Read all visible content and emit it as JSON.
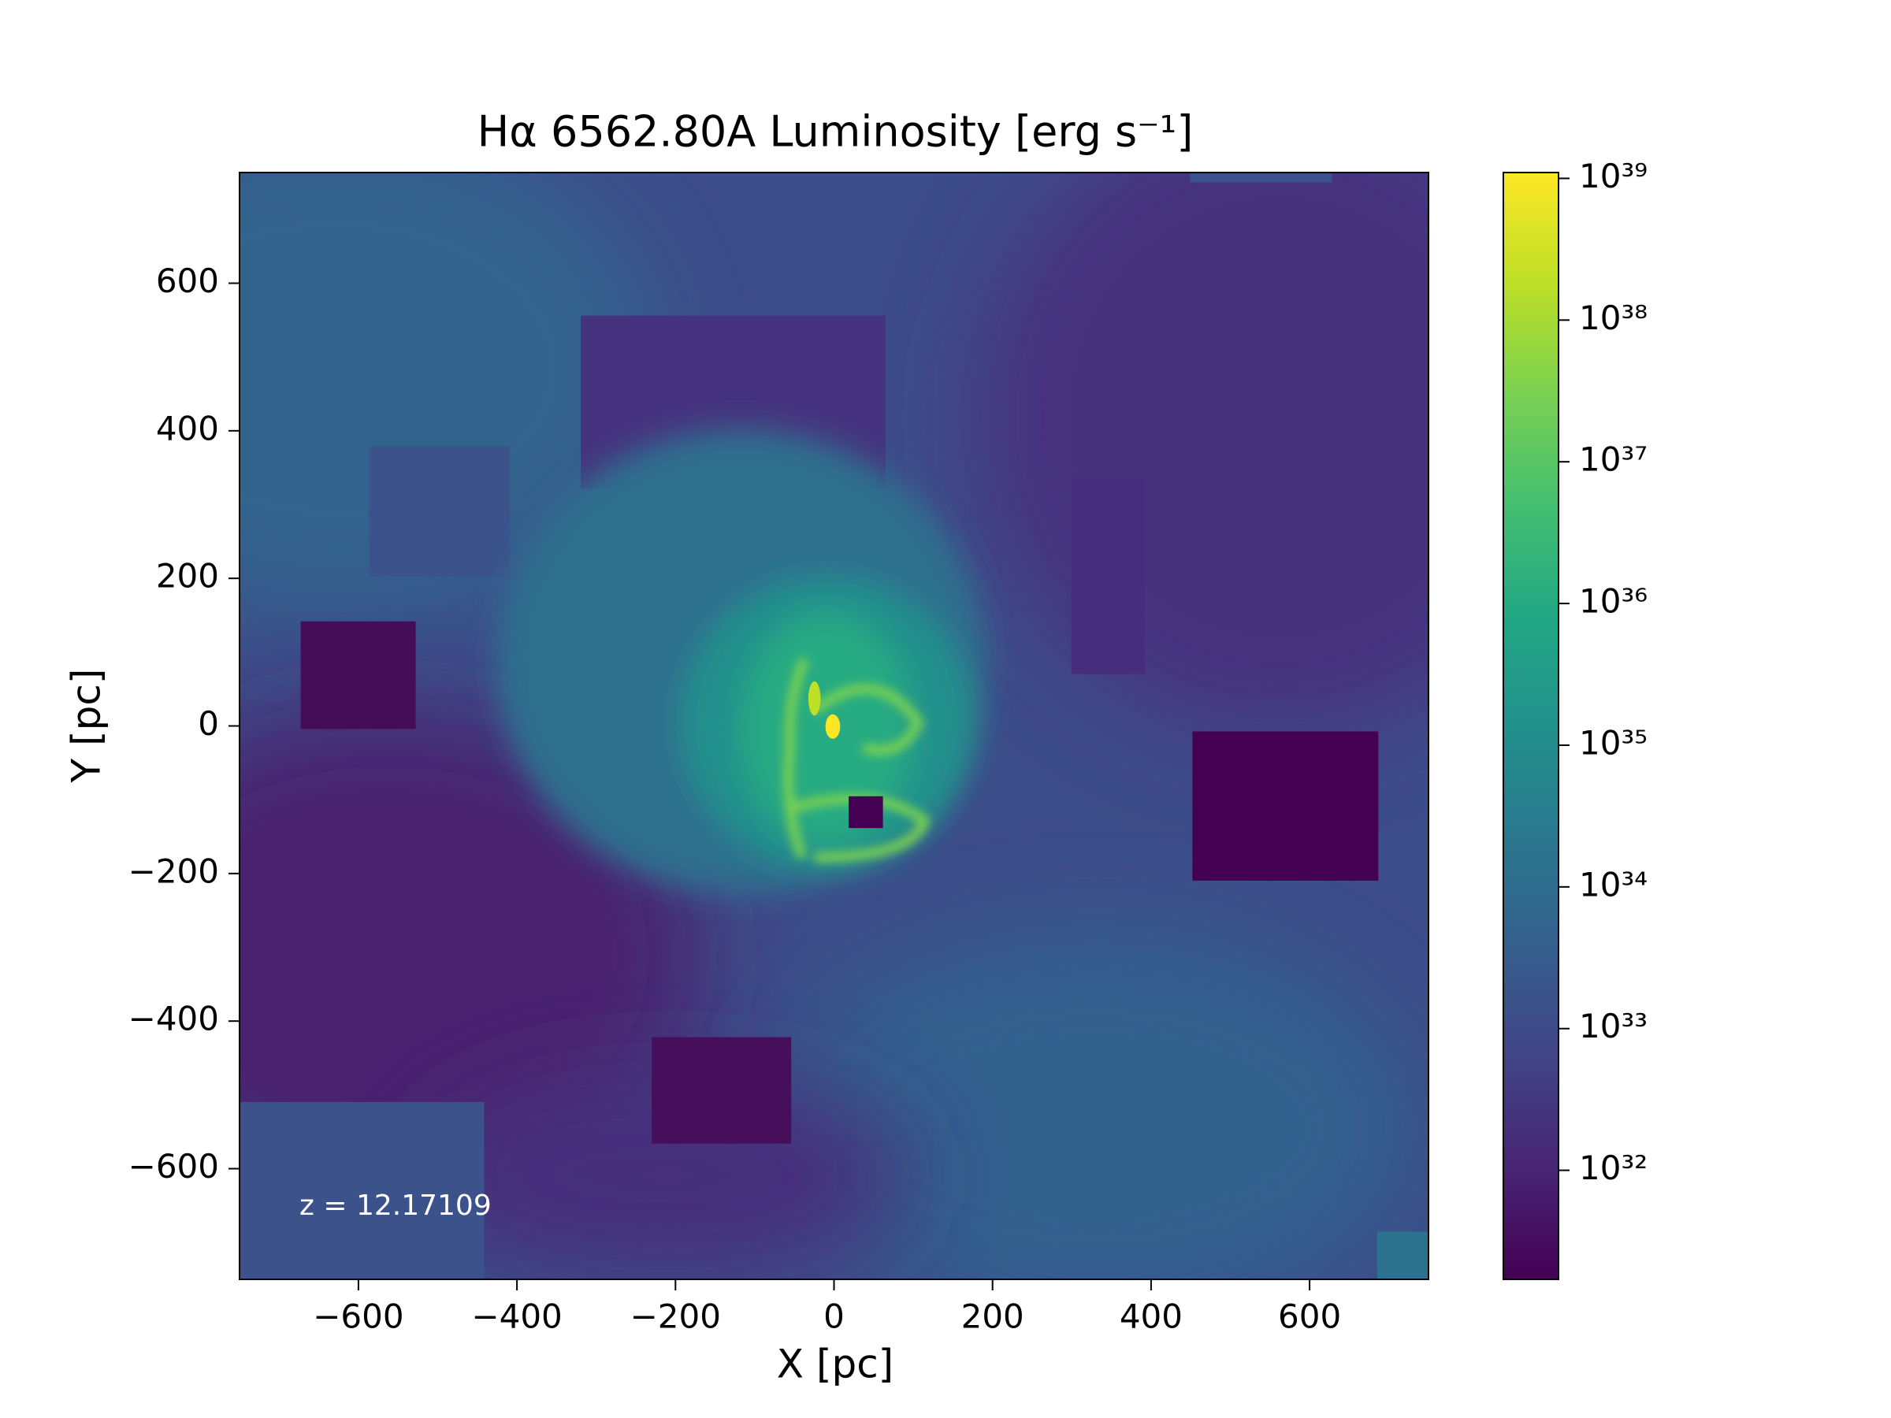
{
  "chart_data": {
    "type": "heatmap",
    "title": "Hα 6562.80A Luminosity [erg s⁻¹]",
    "xlabel": "X [pc]",
    "ylabel": "Y [pc]",
    "annotation": "z = 12.17109",
    "xlim": [
      -750,
      750
    ],
    "ylim": [
      -750,
      750
    ],
    "xticks": [
      {
        "value": -600,
        "label": "−600"
      },
      {
        "value": -400,
        "label": "−400"
      },
      {
        "value": -200,
        "label": "−200"
      },
      0,
      200,
      400,
      600
    ],
    "yticks": [
      {
        "value": -600,
        "label": "−600"
      },
      {
        "value": -400,
        "label": "−400"
      },
      {
        "value": -200,
        "label": "−200"
      },
      0,
      200,
      400,
      600
    ],
    "colormap": "viridis",
    "color_scale": "log",
    "clim": [
      1.7e+31,
      1.1e+39
    ],
    "cticks": [
      {
        "value": 1e+32,
        "label": "10³²"
      },
      {
        "value": 1e+33,
        "label": "10³³"
      },
      {
        "value": 1e+34,
        "label": "10³⁴"
      },
      {
        "value": 1e+35,
        "label": "10³⁵"
      },
      {
        "value": 1e+36,
        "label": "10³⁶"
      },
      {
        "value": 1e+37,
        "label": "10³⁷"
      },
      {
        "value": 1e+38,
        "label": "10³⁸"
      },
      {
        "value": 1e+39,
        "label": "10³⁹"
      }
    ]
  }
}
